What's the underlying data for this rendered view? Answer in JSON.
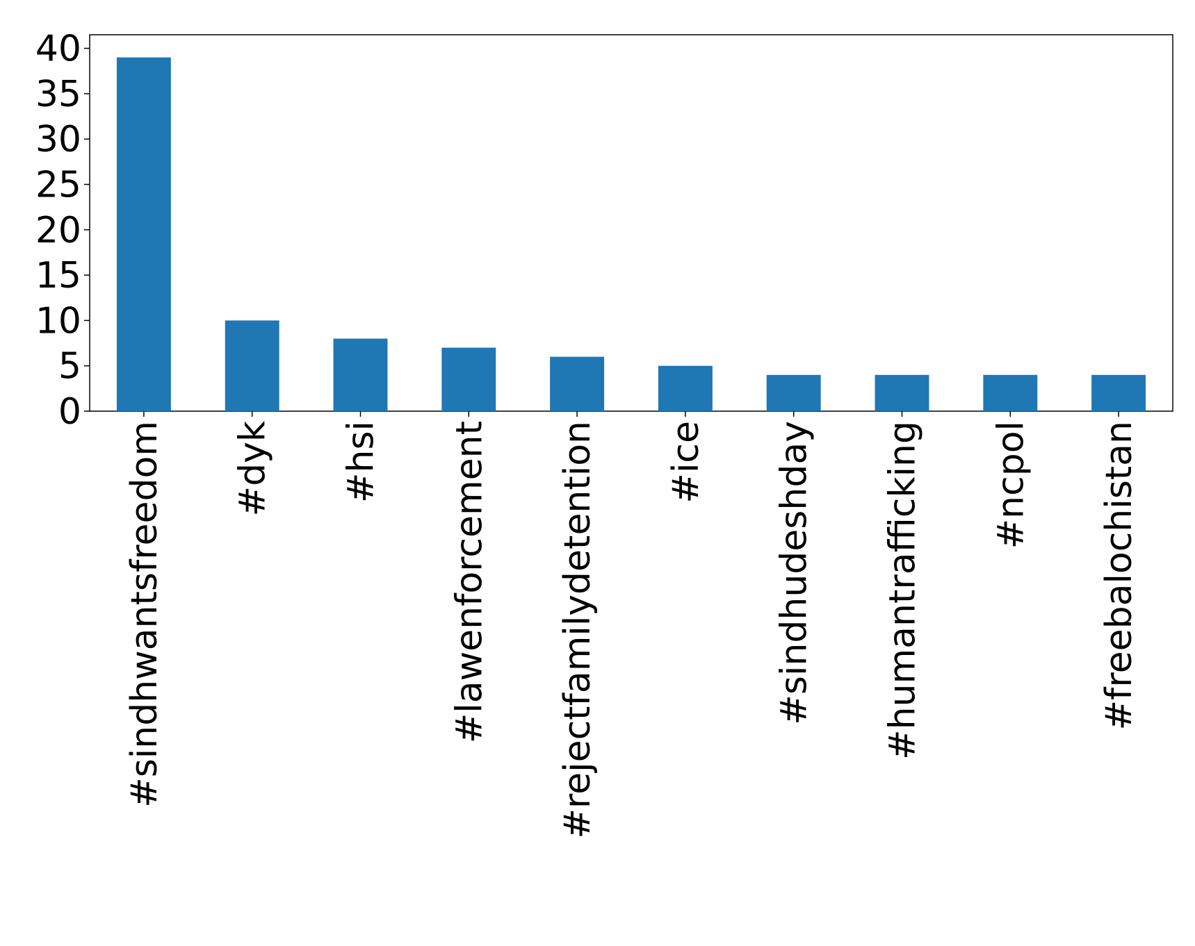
{
  "chart_data": {
    "type": "bar",
    "categories": [
      "#sindhwantsfreedom",
      "#dyk",
      "#hsi",
      "#lawenforcement",
      "#rejectfamilydetention",
      "#ice",
      "#sindhudeshday",
      "#humantrafficking",
      "#ncpol",
      "#freebalochistan"
    ],
    "values": [
      39,
      10,
      8,
      7,
      6,
      5,
      4,
      4,
      4,
      4
    ],
    "color": "#1f77b4",
    "ylim": [
      0,
      41.5
    ],
    "yticks": [
      0,
      5,
      10,
      15,
      20,
      25,
      30,
      35,
      40
    ],
    "grid": false
  }
}
